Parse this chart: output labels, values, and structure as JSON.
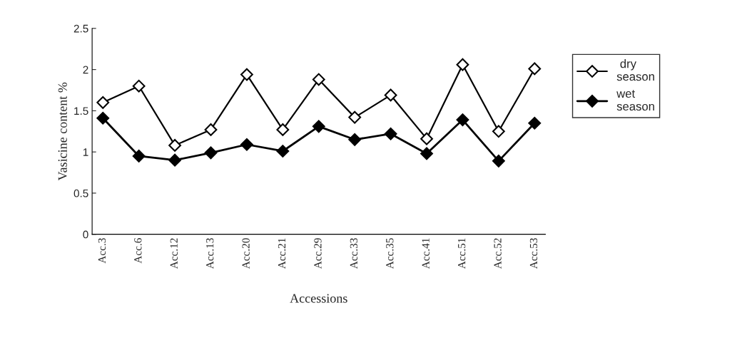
{
  "chart_data": {
    "type": "line",
    "xlabel": "Accessions",
    "ylabel": "Vasicine content %",
    "categories": [
      "Acc.3",
      "Acc.6",
      "Acc.12",
      "Acc.13",
      "Acc.20",
      "Acc.21",
      "Acc.29",
      "Acc.33",
      "Acc.35",
      "Acc.41",
      "Acc.51",
      "Acc.52",
      "Acc.53"
    ],
    "series": [
      {
        "name": " dry\nseason",
        "color": "#000000",
        "marker": "diamond",
        "values": [
          1.6,
          1.8,
          1.08,
          1.27,
          1.94,
          1.27,
          1.88,
          1.42,
          1.69,
          1.16,
          2.06,
          1.25,
          2.01
        ]
      },
      {
        "name": "wet\nseason",
        "color": "#000000",
        "marker": "diamond",
        "values": [
          1.41,
          0.95,
          0.9,
          0.99,
          1.09,
          1.01,
          1.31,
          1.15,
          1.22,
          0.98,
          1.39,
          0.89,
          1.35
        ]
      }
    ],
    "ylim": [
      0,
      2.5
    ],
    "yticks": [
      0,
      0.5,
      1,
      1.5,
      2,
      2.5
    ],
    "grid": false,
    "legend": "right",
    "line_style": "solid"
  }
}
